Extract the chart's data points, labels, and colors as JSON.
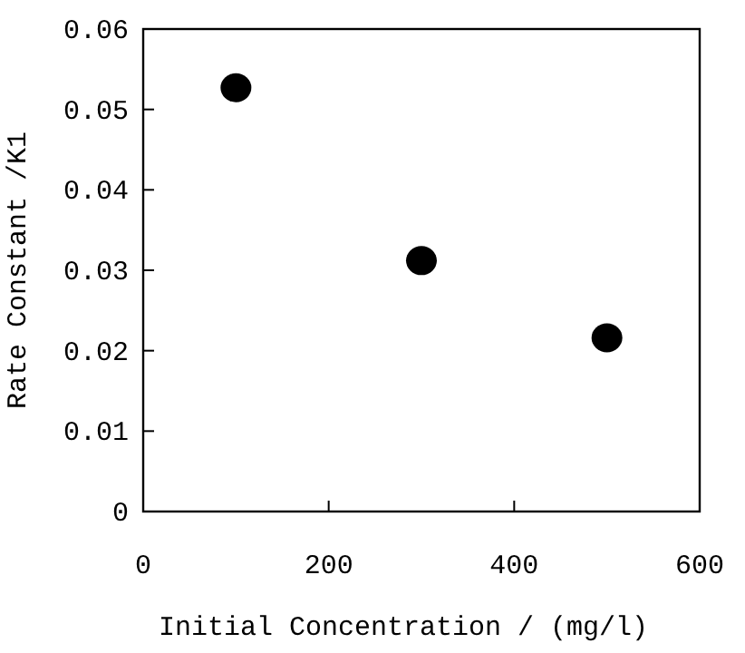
{
  "chart_data": {
    "type": "scatter",
    "xlabel": "Initial Concentration / (mg/l)",
    "ylabel": "Rate Constant /K1",
    "x": [
      100,
      300,
      500
    ],
    "values": [
      0.0527,
      0.0312,
      0.0216
    ],
    "color": "#000000",
    "marker": "circle",
    "xlim": [
      0,
      600
    ],
    "xticks": [
      0,
      200,
      400,
      600
    ],
    "ylim": [
      0,
      0.06
    ],
    "yticks": [
      0,
      0.01,
      0.02,
      0.03,
      0.04,
      0.05,
      0.06
    ],
    "grid": false
  }
}
